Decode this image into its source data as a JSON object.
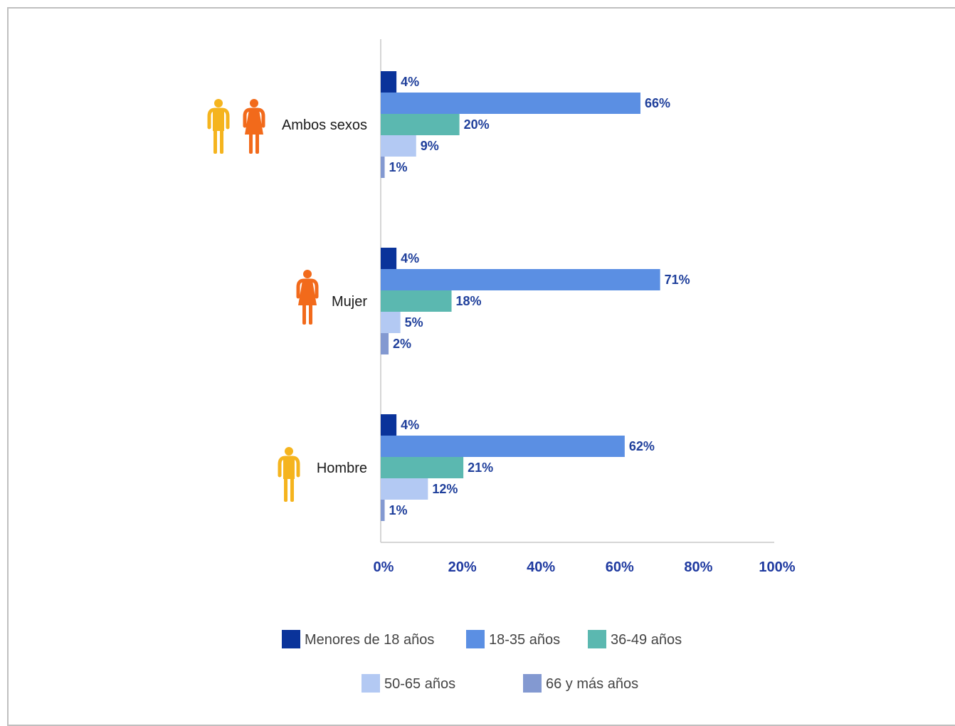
{
  "chart_data": {
    "type": "bar",
    "orientation": "horizontal",
    "categories": [
      "Ambos sexos",
      "Mujer",
      "Hombre"
    ],
    "series": [
      {
        "name": "Menores de 18 años",
        "color": "#0a339a",
        "values": [
          4,
          4,
          4
        ]
      },
      {
        "name": "18-35 años",
        "color": "#5b8fe3",
        "values": [
          66,
          71,
          62
        ]
      },
      {
        "name": "36-49 años",
        "color": "#5bb8b0",
        "values": [
          20,
          18,
          21
        ]
      },
      {
        "name": "50-65 años",
        "color": "#b3c9f3",
        "values": [
          9,
          5,
          12
        ]
      },
      {
        "name": "66 y más años",
        "color": "#8399d1",
        "values": [
          1,
          2,
          1
        ]
      }
    ],
    "value_labels": [
      [
        "4%",
        "66%",
        "20%",
        "9%",
        "1%"
      ],
      [
        "4%",
        "71%",
        "18%",
        "5%",
        "2%"
      ],
      [
        "4%",
        "62%",
        "21%",
        "12%",
        "1%"
      ]
    ],
    "xticks": [
      "0%",
      "20%",
      "40%",
      "60%",
      "80%",
      "100%"
    ],
    "xlim": [
      0,
      100
    ],
    "grid": false,
    "legend_position": "bottom",
    "category_icons": [
      [
        "man-icon",
        "woman-icon"
      ],
      [
        "woman-icon"
      ],
      [
        "man-icon"
      ]
    ],
    "icon_colors": {
      "man": "#f5b41e",
      "woman": "#f26a1b"
    },
    "label_color": "#1f3f9b",
    "tick_color": "#1f3aa0"
  }
}
